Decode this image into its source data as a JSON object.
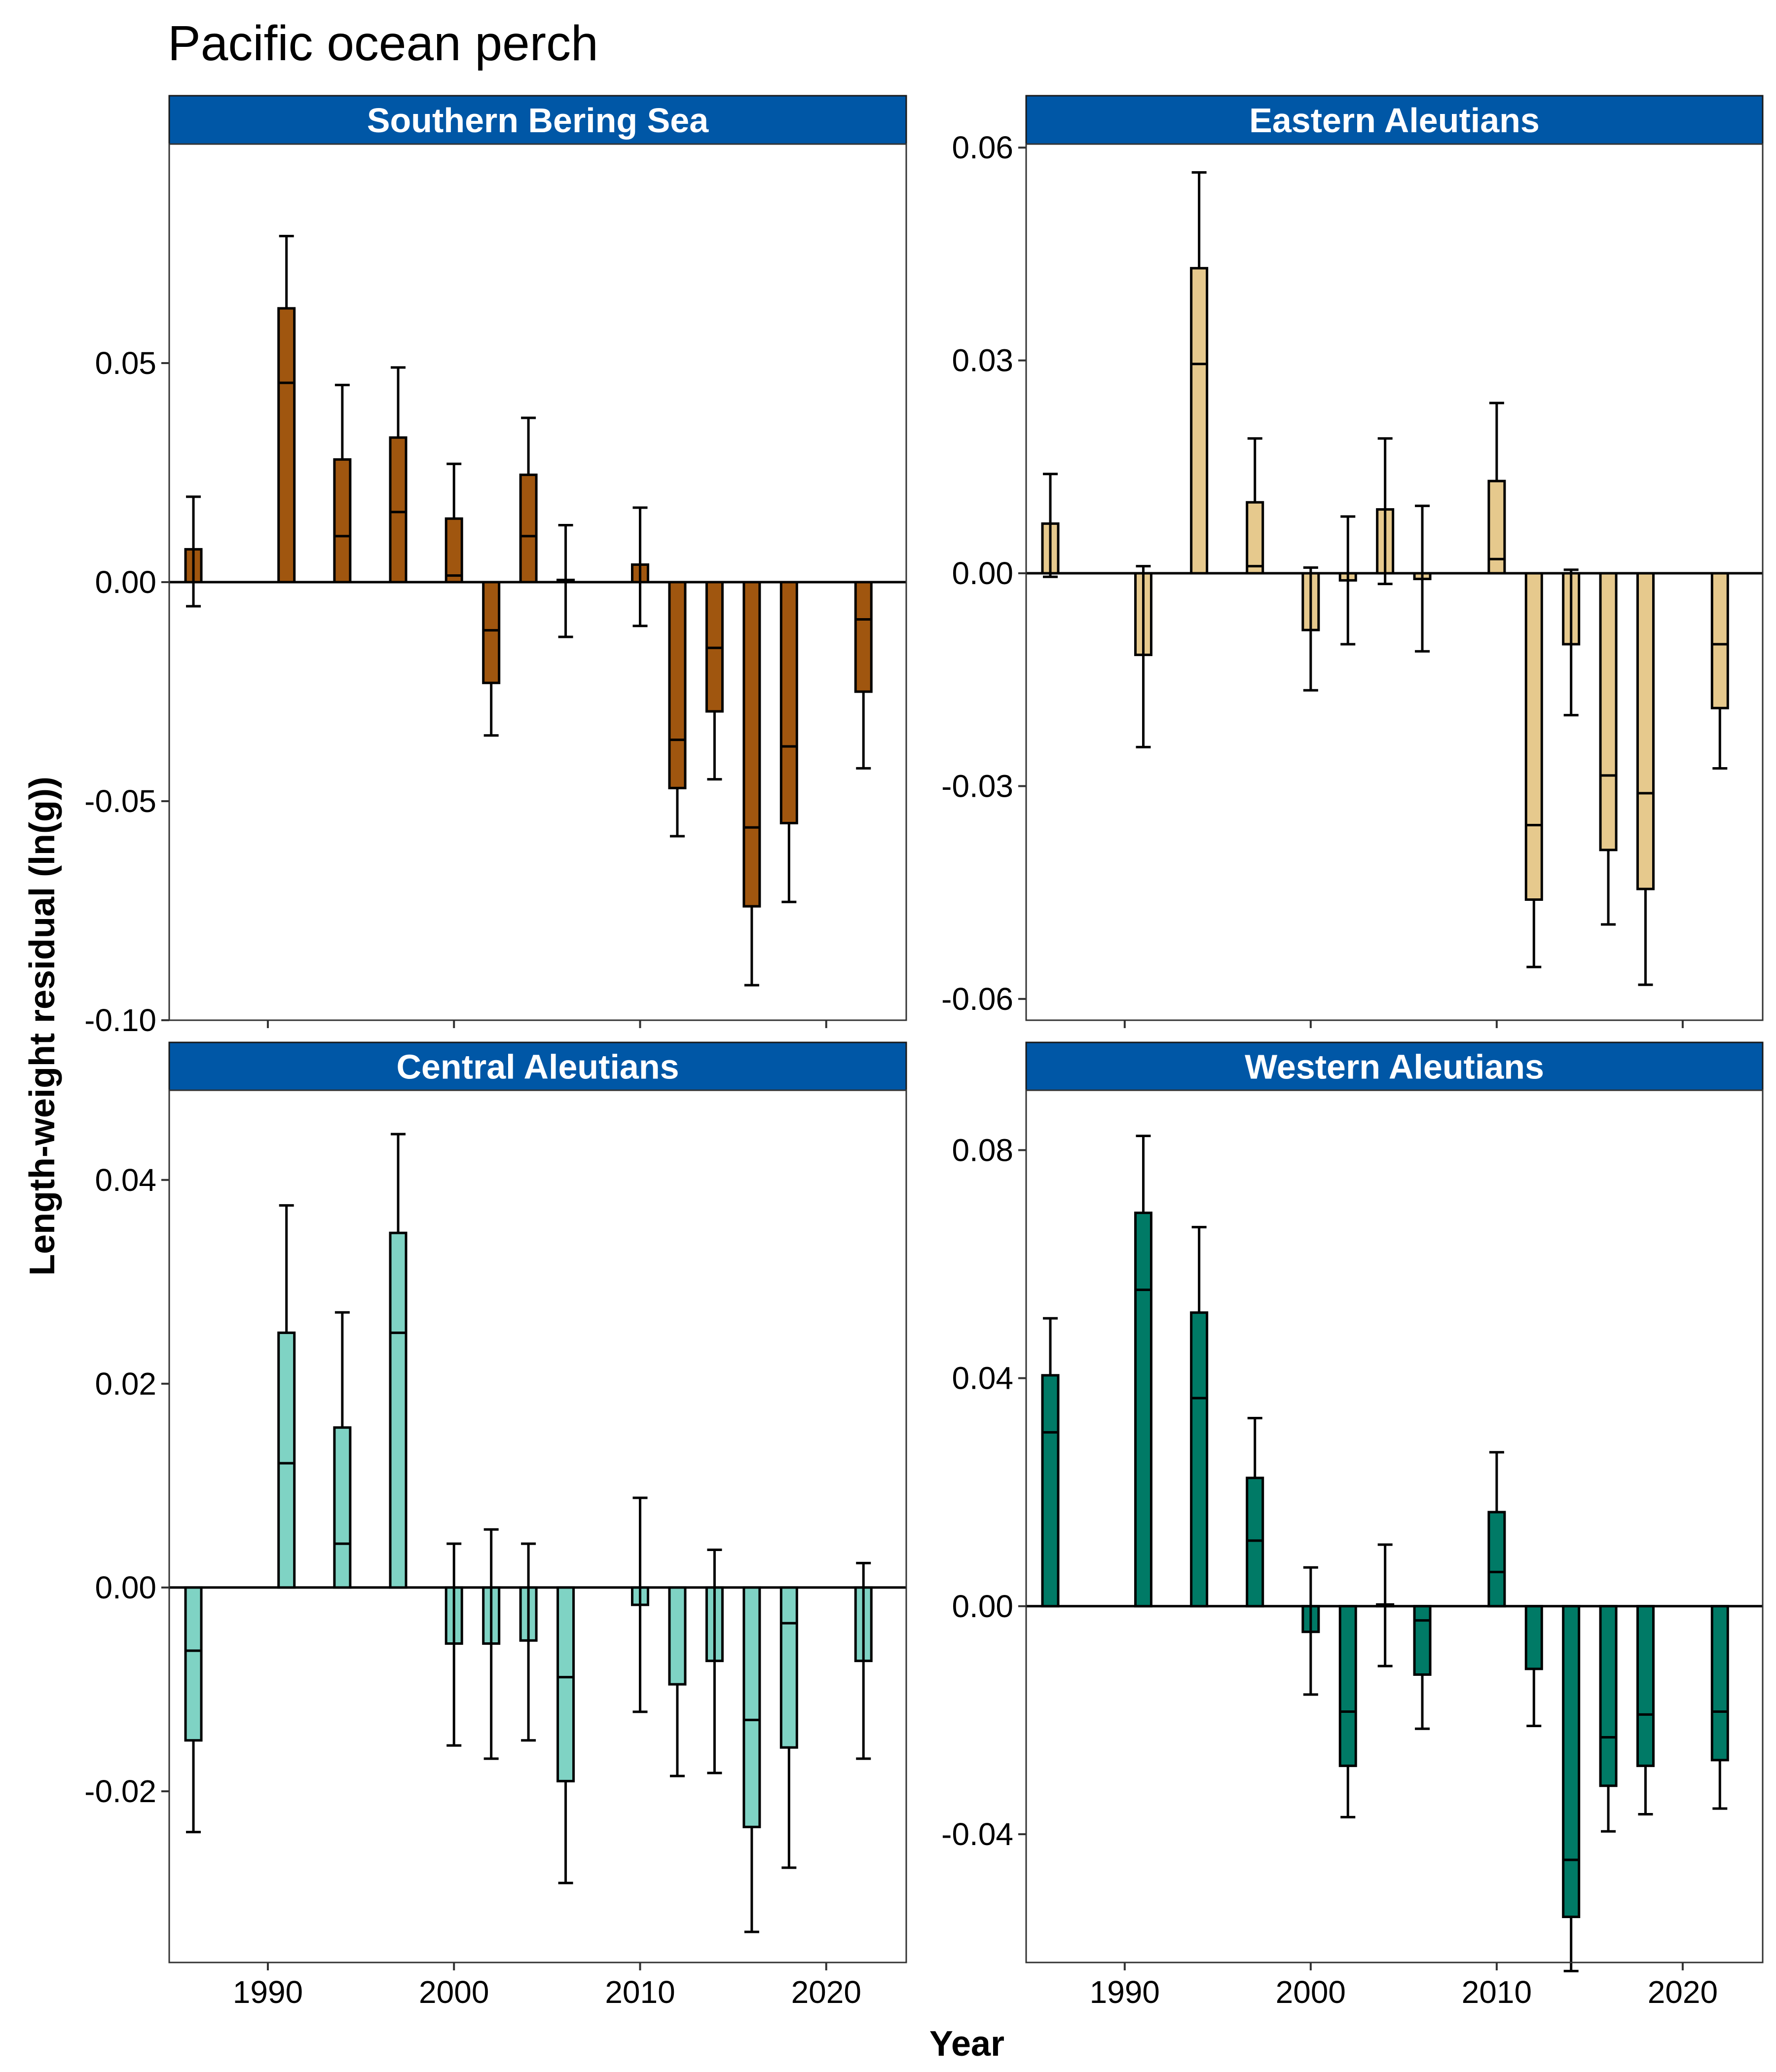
{
  "title": "Pacific ocean perch",
  "xlabel": "Year",
  "ylabel": "Length-weight residual (ln(g))",
  "strip_color": "#0057A6",
  "chart_data": [
    {
      "type": "bar",
      "panel": "Southern Bering Sea",
      "fill": "#A0560F",
      "x": [
        1986,
        1991,
        1994,
        1997,
        2000,
        2002,
        2004,
        2006,
        2010,
        2012,
        2014,
        2016,
        2018,
        2022
      ],
      "values": [
        0.0075,
        0.0625,
        0.028,
        0.033,
        0.0145,
        -0.023,
        0.0245,
        0.0005,
        0.004,
        -0.047,
        -0.0295,
        -0.074,
        -0.055,
        -0.025
      ],
      "inner": [
        null,
        0.0455,
        0.0105,
        0.016,
        0.0015,
        -0.011,
        0.0105,
        null,
        null,
        -0.036,
        -0.015,
        -0.056,
        -0.0375,
        -0.0085
      ],
      "err_low": [
        -0.0055,
        null,
        null,
        null,
        null,
        -0.035,
        null,
        -0.0125,
        -0.01,
        -0.058,
        -0.045,
        -0.092,
        -0.073,
        -0.0425
      ],
      "err_high": [
        0.0195,
        0.079,
        0.045,
        0.049,
        0.027,
        null,
        0.0375,
        0.013,
        0.017,
        null,
        null,
        null,
        null,
        null
      ],
      "ylim": [
        -0.1,
        0.1
      ],
      "yticks": [
        0.05,
        0.0,
        -0.05,
        -0.1
      ],
      "ytick_labels": [
        "0.05",
        "0.00",
        "-0.05",
        "-0.10"
      ],
      "xticks": [
        1990,
        2000,
        2010,
        2020
      ],
      "xtick_labels": [
        "1990",
        "2000",
        "2010",
        "2020"
      ],
      "show_xticks": false
    },
    {
      "type": "bar",
      "panel": "Eastern Aleutians",
      "fill": "#E6C98D",
      "x": [
        1986,
        1991,
        1994,
        1997,
        2000,
        2002,
        2004,
        2006,
        2010,
        2012,
        2014,
        2016,
        2018,
        2022
      ],
      "values": [
        0.007,
        -0.0115,
        0.043,
        0.01,
        -0.008,
        -0.001,
        0.009,
        -0.0008,
        0.013,
        -0.046,
        -0.01,
        -0.039,
        -0.0445,
        -0.019
      ],
      "inner": [
        null,
        null,
        0.0295,
        0.001,
        null,
        null,
        null,
        null,
        0.002,
        -0.0355,
        null,
        -0.0285,
        -0.031,
        -0.01
      ],
      "err_low": [
        -0.0005,
        -0.0245,
        null,
        null,
        -0.0165,
        -0.01,
        -0.0015,
        -0.011,
        null,
        -0.0555,
        -0.02,
        -0.0495,
        -0.058,
        -0.0275
      ],
      "err_high": [
        0.014,
        0.001,
        0.0565,
        0.019,
        0.0008,
        0.008,
        0.019,
        0.0095,
        0.024,
        null,
        0.0005,
        null,
        null,
        null
      ],
      "ylim": [
        -0.063,
        0.0605
      ],
      "yticks": [
        0.06,
        0.03,
        0.0,
        -0.03,
        -0.06
      ],
      "ytick_labels": [
        "0.06",
        "0.03",
        "0.00",
        "-0.03",
        "-0.06"
      ],
      "xticks": [
        1990,
        2000,
        2010,
        2020
      ],
      "xtick_labels": [
        "1990",
        "2000",
        "2010",
        "2020"
      ],
      "show_xticks": false
    },
    {
      "type": "bar",
      "panel": "Central Aleutians",
      "fill": "#7FD3C4",
      "x": [
        1986,
        1991,
        1994,
        1997,
        2000,
        2002,
        2004,
        2006,
        2010,
        2012,
        2014,
        2016,
        2018,
        2022
      ],
      "values": [
        -0.015,
        0.025,
        0.0157,
        0.0348,
        -0.0055,
        -0.0055,
        -0.0052,
        -0.019,
        -0.0017,
        -0.0095,
        -0.0072,
        -0.0235,
        -0.0157,
        -0.0072
      ],
      "inner": [
        -0.0062,
        0.0122,
        0.0043,
        0.025,
        null,
        null,
        null,
        -0.0088,
        null,
        null,
        null,
        -0.013,
        -0.0035,
        null
      ],
      "err_low": [
        -0.024,
        null,
        null,
        null,
        -0.0155,
        -0.0168,
        -0.015,
        -0.029,
        -0.0122,
        -0.0185,
        -0.0182,
        -0.0338,
        -0.0275,
        -0.0168
      ],
      "err_high": [
        null,
        0.0375,
        0.027,
        0.0445,
        0.0043,
        0.0057,
        0.0043,
        null,
        0.0088,
        null,
        0.0037,
        null,
        null,
        0.0024
      ],
      "ylim": [
        -0.0368,
        0.0488
      ],
      "yticks": [
        0.04,
        0.02,
        0.0,
        -0.02
      ],
      "ytick_labels": [
        "0.04",
        "0.02",
        "0.00",
        "-0.02"
      ],
      "xticks": [
        1990,
        2000,
        2010,
        2020
      ],
      "xtick_labels": [
        "1990",
        "2000",
        "2010",
        "2020"
      ],
      "show_xticks": true
    },
    {
      "type": "bar",
      "panel": "Western Aleutians",
      "fill": "#007A66",
      "x": [
        1986,
        1991,
        1994,
        1997,
        2000,
        2002,
        2004,
        2006,
        2010,
        2012,
        2014,
        2016,
        2018,
        2022
      ],
      "values": [
        0.0405,
        0.069,
        0.0515,
        0.0225,
        -0.0045,
        -0.028,
        0.0003,
        -0.012,
        0.0165,
        -0.011,
        -0.0545,
        -0.0315,
        -0.028,
        -0.027
      ],
      "inner": [
        0.0305,
        0.0555,
        0.0365,
        0.0115,
        null,
        -0.0185,
        null,
        -0.0025,
        0.006,
        null,
        -0.0445,
        -0.023,
        -0.019,
        -0.0185
      ],
      "err_low": [
        null,
        null,
        null,
        null,
        -0.0155,
        -0.037,
        -0.0105,
        -0.0215,
        null,
        -0.021,
        -0.064,
        -0.0395,
        -0.0365,
        -0.0355
      ],
      "err_high": [
        0.0505,
        0.0825,
        0.0665,
        0.033,
        0.0068,
        null,
        0.0108,
        null,
        0.027,
        null,
        null,
        null,
        null,
        null
      ],
      "ylim": [
        -0.0625,
        0.0905
      ],
      "yticks": [
        0.08,
        0.04,
        0.0,
        -0.04
      ],
      "ytick_labels": [
        "0.08",
        "0.04",
        "0.00",
        "-0.04"
      ],
      "xticks": [
        1990,
        2000,
        2010,
        2020
      ],
      "xtick_labels": [
        "1990",
        "2000",
        "2010",
        "2020"
      ],
      "show_xticks": true
    }
  ]
}
